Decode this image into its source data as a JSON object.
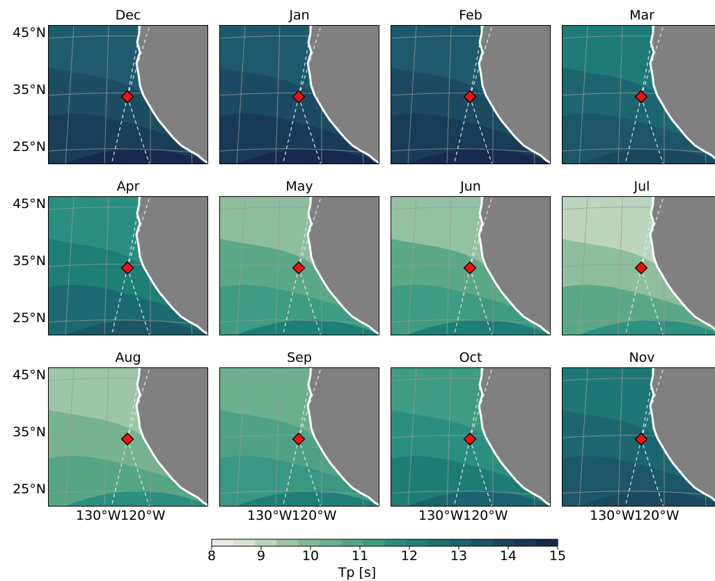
{
  "panels": [
    {
      "month": "Dec",
      "colors": [
        "#1f5c6e",
        "#1c4e63",
        "#1a3d58",
        "#172a4e"
      ]
    },
    {
      "month": "Jan",
      "colors": [
        "#1d5b6c",
        "#1b4b62",
        "#193b57",
        "#162a4d"
      ]
    },
    {
      "month": "Feb",
      "colors": [
        "#1d5a6b",
        "#1b4a61",
        "#193c57",
        "#162b4e"
      ]
    },
    {
      "month": "Mar",
      "colors": [
        "#1e7b78",
        "#1d6670",
        "#1c5667",
        "#1b485d"
      ]
    },
    {
      "month": "Apr",
      "colors": [
        "#2a8f80",
        "#1e7e78",
        "#1c6a71",
        "#1b5767"
      ]
    },
    {
      "month": "May",
      "colors": [
        "#8ebe9d",
        "#5ba886",
        "#3f9b81",
        "#1e7e78"
      ]
    },
    {
      "month": "Jun",
      "colors": [
        "#93c1a2",
        "#5ba886",
        "#3f9b81",
        "#1e7e78"
      ]
    },
    {
      "month": "Jul",
      "colors": [
        "#bcd6bd",
        "#8ebe9d",
        "#5ba886",
        "#2f9180"
      ]
    },
    {
      "month": "Aug",
      "colors": [
        "#9dc6a6",
        "#74b291",
        "#56a584",
        "#2a8f80"
      ]
    },
    {
      "month": "Sep",
      "colors": [
        "#6ab08e",
        "#4fa285",
        "#3a9781",
        "#1f8079"
      ]
    },
    {
      "month": "Oct",
      "colors": [
        "#3f9b81",
        "#2a8f80",
        "#1e7c77",
        "#1b6470"
      ]
    },
    {
      "month": "Nov",
      "colors": [
        "#1e7776",
        "#1c676f",
        "#1c5767",
        "#1b4a5f"
      ]
    }
  ],
  "axes": {
    "y_ticks": [
      "45°N",
      "35°N",
      "25°N"
    ],
    "x_ticks": [
      "130°W",
      "120°W"
    ]
  },
  "colorbar": {
    "label": "Tp [s]",
    "ticks": [
      "8",
      "9",
      "10",
      "11",
      "12",
      "13",
      "14",
      "15"
    ],
    "range": [
      8,
      15
    ],
    "levels": 16,
    "colors": [
      "#ece9e3",
      "#d8e3d2",
      "#bcd6bd",
      "#9dc6a6",
      "#83b896",
      "#6ab08e",
      "#56a584",
      "#3f9b81",
      "#2a8f80",
      "#1e8079",
      "#1c7173",
      "#1c636d",
      "#1b5466",
      "#1a455d",
      "#1a3656",
      "#172a4e"
    ]
  },
  "style": {
    "land_color": "#808080",
    "marker_color": "#ee1111",
    "grid_color": "#9a9a9a"
  }
}
